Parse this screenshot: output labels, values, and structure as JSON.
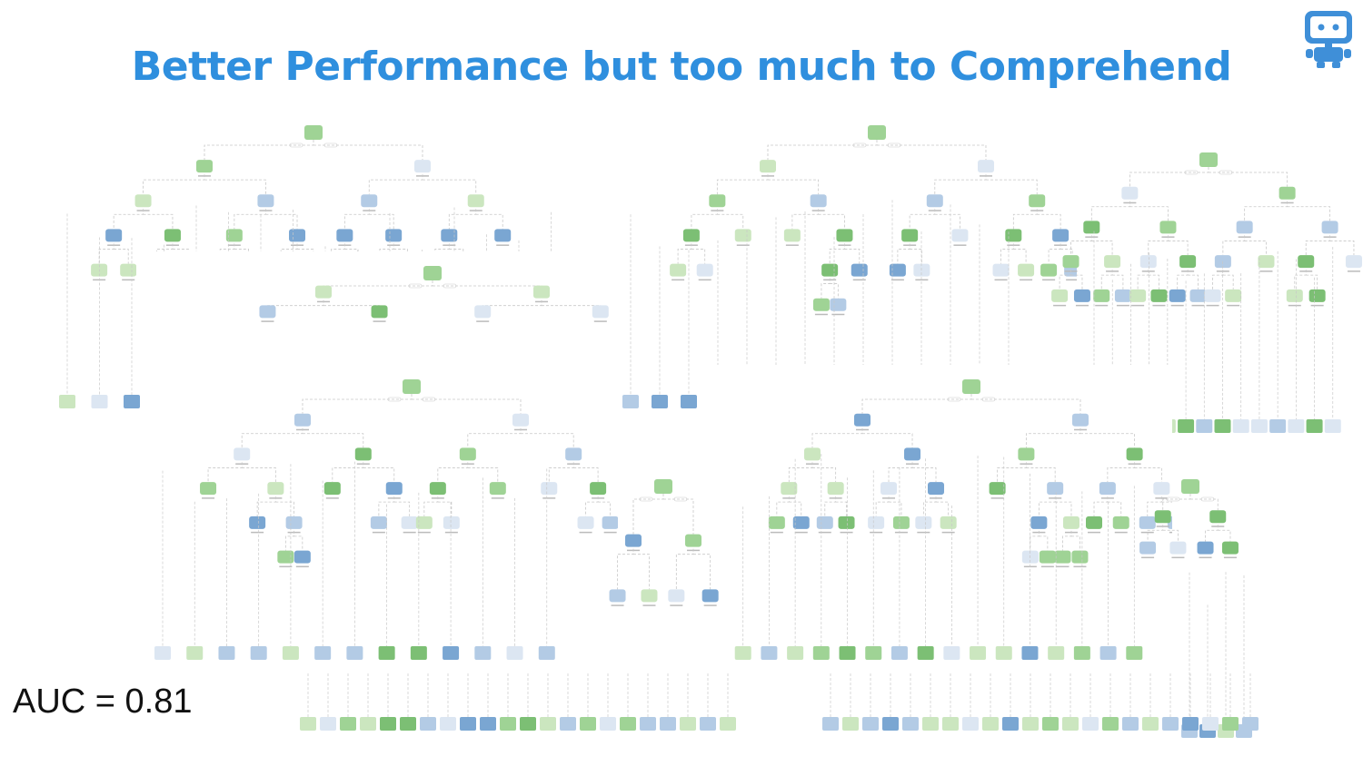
{
  "slide": {
    "title": "Better Performance but too much to Comprehend",
    "metric_label": "AUC = 0.81"
  },
  "logo": {
    "icon": "robot-icon",
    "color": "#3f8fd8"
  },
  "diagram": {
    "kind": "random forest of decision trees",
    "tree_count": 7,
    "node_colors": {
      "strong_green": "#7cbf74",
      "green": "#9fd395",
      "light_green": "#cbe6bf",
      "pale_blue": "#dce6f2",
      "light_blue": "#b3cbe5",
      "blue": "#7aa6d2"
    },
    "edge_color": "#c8c8c8"
  }
}
